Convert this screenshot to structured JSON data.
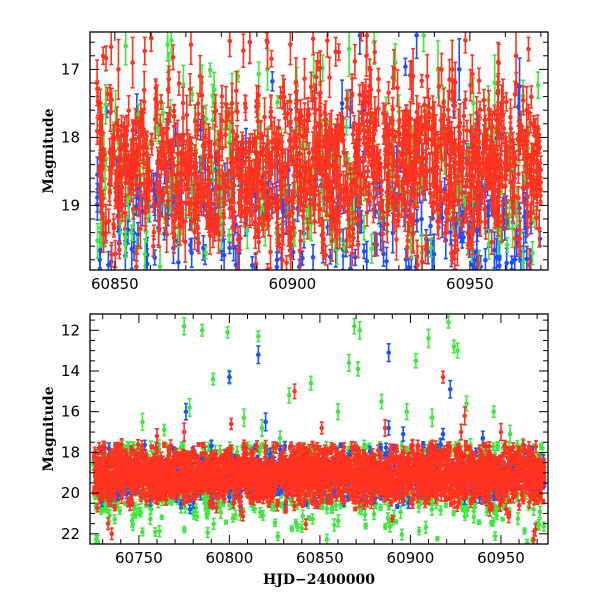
{
  "colors": {
    "blue": "#1a50ff",
    "green": "#3ee83e",
    "red": "#ff3320"
  },
  "chart_data": [
    {
      "type": "scatter",
      "title": "",
      "xlabel": "",
      "ylabel": "Magnitude",
      "xlim": [
        60843,
        60972
      ],
      "ylim": [
        19.95,
        16.45
      ],
      "y_inverted": true,
      "xticks": [
        60850,
        60900,
        60950
      ],
      "yticks": [
        17,
        18,
        19
      ],
      "grid": false,
      "series": [
        {
          "name": "blue",
          "color": "#1a50ff",
          "seed": 11,
          "n": 360,
          "mean": 19.2,
          "sd": 0.55,
          "yclip": [
            16.45,
            19.95
          ],
          "clip": true,
          "outliers": [
            [
              60888,
              16.6
            ],
            [
              60919,
              16.5
            ],
            [
              60935,
              16.5
            ],
            [
              60947,
              17.0
            ],
            [
              60964,
              17.25
            ],
            [
              60914,
              17.5
            ],
            [
              60920,
              17.6
            ]
          ]
        },
        {
          "name": "green",
          "color": "#3ee83e",
          "seed": 23,
          "n": 300,
          "mean": 18.6,
          "sd": 0.6,
          "yclip": [
            16.45,
            19.95
          ],
          "clip": true,
          "outliers": [
            [
              60923,
              16.6
            ],
            [
              60929,
              16.9
            ],
            [
              60916,
              16.7
            ],
            [
              60906,
              17.1
            ],
            [
              60893,
              17.0
            ],
            [
              60878,
              17.3
            ],
            [
              60883,
              17.5
            ],
            [
              60941,
              17.0
            ],
            [
              60951,
              17.5
            ],
            [
              60957,
              17.2
            ],
            [
              60862,
              17.6
            ]
          ]
        },
        {
          "name": "red",
          "color": "#ff3320",
          "seed": 37,
          "n": 1300,
          "mean": 18.5,
          "sd": 0.6,
          "yclip": [
            16.45,
            19.95
          ],
          "clip": true,
          "outliers": [
            [
              60845,
              17.2
            ],
            [
              60851,
              17.0
            ],
            [
              60855,
              16.9
            ],
            [
              60865,
              17.3
            ],
            [
              60874,
              17.1
            ],
            [
              60883,
              17.5
            ],
            [
              60888,
              16.6
            ],
            [
              60893,
              16.6
            ],
            [
              60901,
              17.2
            ],
            [
              60921,
              16.5
            ],
            [
              60934,
              17.1
            ],
            [
              60938,
              17.1
            ],
            [
              60940,
              17.8
            ],
            [
              60945,
              17.0
            ],
            [
              60963,
              16.8
            ],
            [
              60966,
              17.6
            ]
          ]
        }
      ]
    },
    {
      "type": "scatter",
      "title": "",
      "xlabel": "HJD−2400000",
      "ylabel": "Magnitude",
      "xlim": [
        60723,
        60976
      ],
      "ylim": [
        22.5,
        11.2
      ],
      "y_inverted": true,
      "xticks": [
        60750,
        60800,
        60850,
        60900,
        60950
      ],
      "yticks": [
        12,
        14,
        16,
        18,
        20,
        22
      ],
      "grid": false,
      "series": [
        {
          "name": "green",
          "color": "#3ee83e",
          "seed": 51,
          "n": 900,
          "mean": 19.6,
          "sd": 1.05,
          "yclip": [
            17.6,
            22.5
          ],
          "clip": false,
          "outliers": [
            [
              60775,
              11.8
            ],
            [
              60785,
              12.0
            ],
            [
              60799,
              12.1
            ],
            [
              60816,
              12.3
            ],
            [
              60910,
              12.4
            ],
            [
              60921,
              11.6
            ],
            [
              60924,
              12.8
            ],
            [
              60926,
              13.0
            ],
            [
              60869,
              11.8
            ],
            [
              60872,
              12.0
            ],
            [
              60866,
              13.6
            ],
            [
              60871,
              13.9
            ],
            [
              60800,
              14.3
            ],
            [
              60791,
              14.4
            ],
            [
              60845,
              14.6
            ],
            [
              60903,
              13.5
            ],
            [
              60778,
              15.8
            ],
            [
              60808,
              16.3
            ],
            [
              60818,
              16.8
            ],
            [
              60833,
              15.2
            ],
            [
              60860,
              16.0
            ],
            [
              60884,
              15.5
            ],
            [
              60898,
              16.0
            ],
            [
              60912,
              16.3
            ],
            [
              60931,
              15.6
            ],
            [
              60946,
              16.0
            ],
            [
              60752,
              16.5
            ],
            [
              60764,
              16.9
            ],
            [
              60955,
              17.1
            ],
            [
              60828,
              17.3
            ]
          ]
        },
        {
          "name": "blue",
          "color": "#1a50ff",
          "seed": 63,
          "n": 700,
          "mean": 19.3,
          "sd": 0.55,
          "yclip": [
            17.6,
            21.2
          ],
          "clip": false,
          "outliers": [
            [
              60816,
              13.2
            ],
            [
              60888,
              13.1
            ],
            [
              60800,
              14.3
            ],
            [
              60922,
              14.9
            ],
            [
              60776,
              16.0
            ],
            [
              60820,
              16.5
            ],
            [
              60888,
              16.8
            ],
            [
              60896,
              17.1
            ],
            [
              60918,
              17.1
            ],
            [
              60940,
              17.3
            ]
          ]
        },
        {
          "name": "red",
          "color": "#ff3320",
          "seed": 77,
          "n": 2600,
          "mean": 19.2,
          "sd": 0.6,
          "yclip": [
            17.6,
            21.6
          ],
          "clip": false,
          "outliers": [
            [
              60775,
              17.0
            ],
            [
              60801,
              16.6
            ],
            [
              60836,
              15.0
            ],
            [
              60886,
              16.8
            ],
            [
              60918,
              14.3
            ],
            [
              60928,
              17.0
            ],
            [
              60930,
              16.2
            ],
            [
              60851,
              16.8
            ],
            [
              60735,
              22.0
            ],
            [
              60733,
              21.5
            ],
            [
              60968,
              22.3
            ],
            [
              60969,
              21.8
            ],
            [
              60760,
              17.2
            ],
            [
              60950,
              17.0
            ]
          ]
        }
      ]
    }
  ]
}
